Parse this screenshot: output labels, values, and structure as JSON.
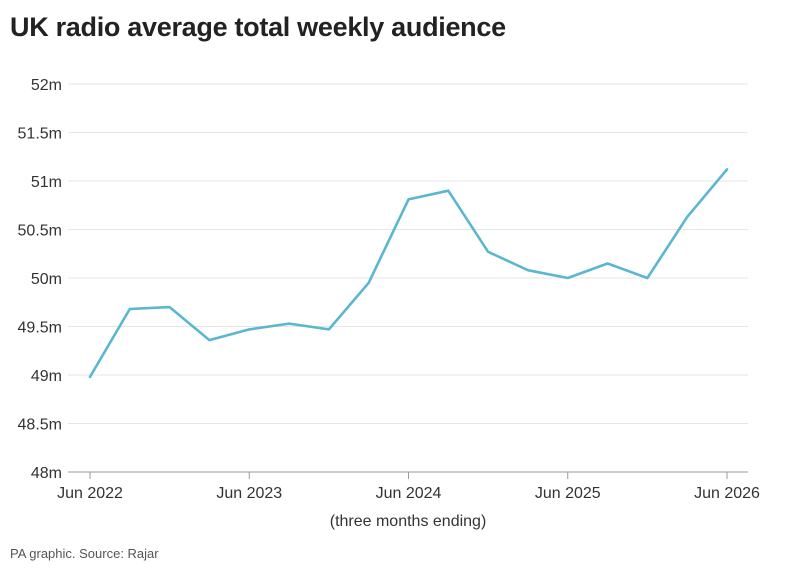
{
  "title": "UK radio average total weekly audience",
  "source": "PA graphic. Source: Rajar",
  "chart_data": {
    "type": "line",
    "title": "UK radio average total weekly audience",
    "xlabel": "(three months ending)",
    "ylabel": "",
    "ylim": [
      48,
      52
    ],
    "y_ticks": [
      48,
      48.5,
      49,
      49.5,
      50,
      50.5,
      51,
      51.5,
      52
    ],
    "y_tick_labels": [
      "48m",
      "48.5m",
      "49m",
      "49.5m",
      "50m",
      "50.5m",
      "51m",
      "51.5m",
      "52m"
    ],
    "x_ticks": [
      "Jun 2022",
      "Jun 2023",
      "Jun 2024",
      "Jun 2025",
      "Jun 2026"
    ],
    "grid": true,
    "line_color": "#5bb6cf",
    "series": [
      {
        "x": [
          "Jun 2022",
          "Sep 2022",
          "Dec 2022",
          "Mar 2023",
          "Jun 2023",
          "Sep 2023",
          "Dec 2023",
          "Mar 2024",
          "Jun 2024",
          "Sep 2024",
          "Dec 2024",
          "Mar 2025",
          "Jun 2025",
          "Sep 2025",
          "Dec 2025",
          "Mar 2026",
          "Jun 2026"
        ],
        "values": [
          48.98,
          49.68,
          49.7,
          49.36,
          49.47,
          49.53,
          49.47,
          49.95,
          50.81,
          50.9,
          50.27,
          50.08,
          50.0,
          50.15,
          50.0,
          50.63,
          51.12
        ]
      }
    ]
  }
}
